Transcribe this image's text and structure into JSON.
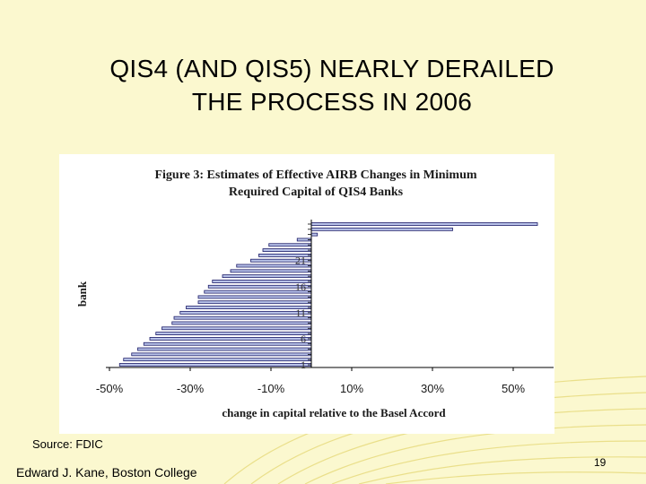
{
  "slide": {
    "title_line1": "QIS4 (AND QIS5) NEARLY DERAILED",
    "title_line2": "THE PROCESS IN 2006",
    "source": "Source: FDIC",
    "footer": "Edward J. Kane, Boston College",
    "page_number": "19"
  },
  "colors": {
    "background": "#fbf8cf",
    "bar_fill": "#b8c2e8",
    "bar_stroke": "#1a1a66",
    "deco_lines": "#eadf8a"
  },
  "chart_data": {
    "type": "bar",
    "orientation": "horizontal",
    "title_line1": "Figure 3: Estimates of Effective AIRB Changes in Minimum",
    "title_line2": "Required Capital of QIS4 Banks",
    "xlabel": "change in capital relative to the Basel Accord",
    "ylabel": "bank",
    "xlim": [
      -50,
      60
    ],
    "x_ticks": [
      -50,
      -30,
      -10,
      10,
      30,
      50
    ],
    "x_tick_labels": [
      "-50%",
      "-30%",
      "-10%",
      "10%",
      "30%",
      "50%"
    ],
    "y_tick_labels": [
      {
        "bank": 1,
        "label": "1"
      },
      {
        "bank": 6,
        "label": "6"
      },
      {
        "bank": 11,
        "label": "11"
      },
      {
        "bank": 16,
        "label": "16"
      },
      {
        "bank": 21,
        "label": "21"
      }
    ],
    "banks": [
      1,
      2,
      3,
      4,
      5,
      6,
      7,
      8,
      9,
      10,
      11,
      12,
      13,
      14,
      15,
      16,
      17,
      18,
      19,
      20,
      21,
      22,
      23,
      24,
      25,
      26,
      27,
      28
    ],
    "values": [
      -47.5,
      -46.5,
      -44.5,
      -43,
      -41.5,
      -40,
      -38.5,
      -37,
      -34.5,
      -34,
      -32.5,
      -31,
      -28,
      -28,
      -26.5,
      -25.5,
      -24.5,
      -22,
      -20,
      -18.5,
      -15,
      -13,
      -12,
      -10.5,
      -3.5,
      1.5,
      35,
      56
    ]
  }
}
